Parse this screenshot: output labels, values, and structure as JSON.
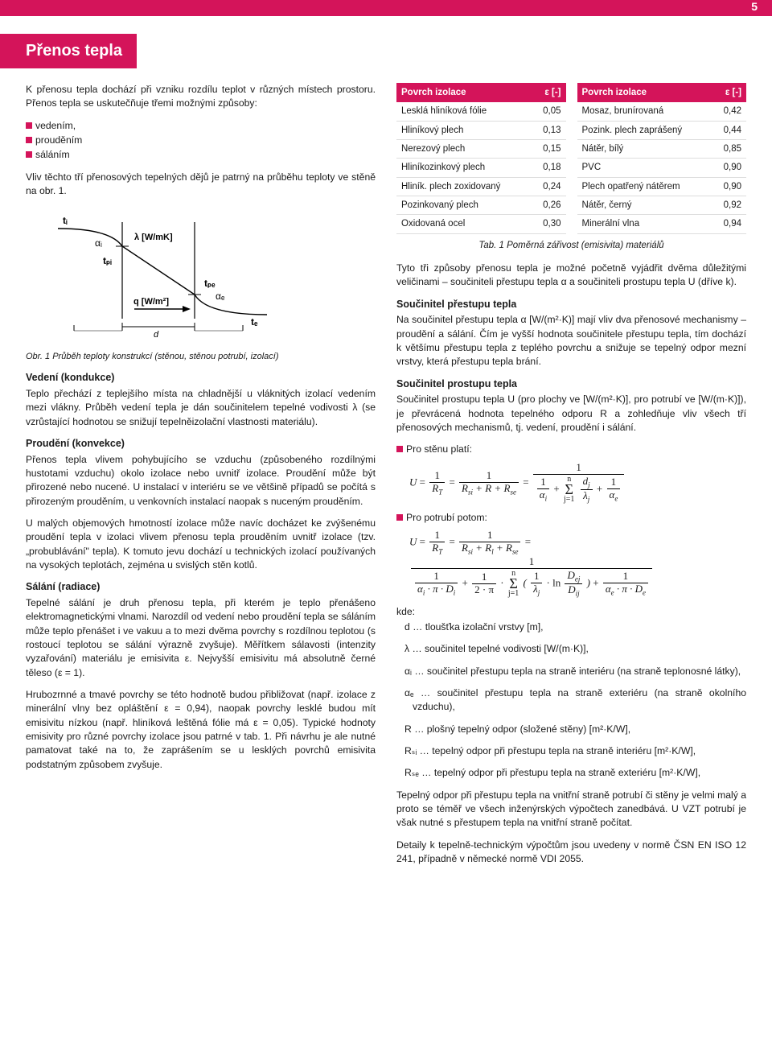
{
  "page_number": "5",
  "title": "Přenos tepla",
  "intro": {
    "p1": "K přenosu tepla dochází při vzniku rozdílu teplot v různých místech prostoru. Přenos tepla se uskutečňuje třemi možnými způsoby:",
    "bullets": [
      "vedením,",
      "prouděním",
      "sáláním"
    ],
    "p2": "Vliv těchto tří přenosových tepelných dějů je patrný na průběhu teploty ve stěně na obr. 1."
  },
  "tables": {
    "header_left": "Povrch izolace",
    "header_right": "ε [-]",
    "left_rows": [
      [
        "Lesklá hliníková fólie",
        "0,05"
      ],
      [
        "Hliníkový plech",
        "0,13"
      ],
      [
        "Nerezový plech",
        "0,15"
      ],
      [
        "Hliníkozinkový plech",
        "0,18"
      ],
      [
        "Hliník. plech zoxidovaný",
        "0,24"
      ],
      [
        "Pozinkovaný plech",
        "0,26"
      ],
      [
        "Oxidovaná ocel",
        "0,30"
      ]
    ],
    "right_rows": [
      [
        "Mosaz, brunírovaná",
        "0,42"
      ],
      [
        "Pozink. plech zaprášený",
        "0,44"
      ],
      [
        "Nátěr, bílý",
        "0,85"
      ],
      [
        "PVC",
        "0,90"
      ],
      [
        "Plech opatřený nátěrem",
        "0,90"
      ],
      [
        "Nátěr, černý",
        "0,92"
      ],
      [
        "Minerální vlna",
        "0,94"
      ]
    ],
    "caption": "Tab. 1 Poměrná zářivost (emisivita) materiálů"
  },
  "right_intro": "Tyto tři způsoby přenosu tepla je možné početně vyjádřit dvěma důležitými veličinami – součiniteli přestupu tepla α a součiniteli prostupu tepla U (dříve k).",
  "diagram": {
    "labels": {
      "ti": "tᵢ",
      "ai": "αᵢ",
      "tpi": "tₚᵢ",
      "lambda": "λ [W/mK]",
      "q": "q [W/m²]",
      "d": "d",
      "tpe": "tₚₑ",
      "ae": "αₑ",
      "te": "tₑ"
    },
    "line_color": "#000000",
    "fontsize": 11
  },
  "fig_caption": "Obr. 1 Průběh teploty konstrukcí (stěnou, stěnou potrubí, izolací)",
  "sections_left": {
    "vedeni_h": "Vedení (kondukce)",
    "vedeni_p": "Teplo přechází z teplejšího místa na chladnější u vláknitých izolací vedením mezi vlákny. Průběh vedení tepla je dán součinitelem tepelné vodivosti λ (se vzrůstající hodnotou se snižují tepelněizolační vlastnosti materiálu).",
    "proud_h": "Proudění (konvekce)",
    "proud_p": "Přenos tepla vlivem pohybujícího se vzduchu (způsobeného rozdílnými hustotami vzduchu) okolo izolace nebo uvnitř izolace. Proudění může být přirozené nebo nucené. U instalací v interiéru se ve většině případů se počítá s přirozeným prouděním, u venkovních instalací naopak s nuceným prouděním.",
    "proud_p2": "U malých objemových hmotností izolace může navíc docházet ke zvýšenému proudění tepla v izolaci vlivem přenosu tepla prouděním uvnitř izolace (tzv. „probublávání\" tepla). K tomuto jevu dochází u technických izolací používaných na vysokých teplotách, zejména u svislých stěn kotlů.",
    "salani_h": "Sálání (radiace)",
    "salani_p": "Tepelné sálání je druh přenosu tepla, při kterém je teplo přenášeno elektromagnetickými vlnami. Narozdíl od vedení nebo proudění tepla se sáláním může teplo přenášet i ve vakuu a to mezi dvěma povrchy s rozdílnou teplotou (s rostoucí teplotou se sálání výrazně zvyšuje). Měřítkem sálavosti (intenzity vyzařování) materiálu je emisivita ε. Nejvyšší emisivitu má absolutně černé těleso (ε = 1).",
    "hrub_p": "Hrubozrnné a tmavé povrchy se této hodnotě budou přibližovat (např. izolace z minerální vlny bez opláštění ε  = 0,94), naopak povrchy lesklé budou mít emisivitu nízkou (např. hliníková leštěná fólie má ε = 0,05). Typické hodnoty emisivity pro různé povrchy izolace jsou patrné v tab. 1. Při návrhu je ale nutné pamatovat také na to, že zaprášením se u lesklých povrchů emisivita podstatným způsobem zvyšuje."
  },
  "sections_right": {
    "prestup_h": "Součinitel přestupu tepla",
    "prestup_p": "Na součinitel přestupu tepla α [W/(m²·K)] mají vliv dva přenosové mechanismy – proudění a sálání. Čím je vyšší hodnota součinitele přestupu tepla, tím dochází k většímu přestupu tepla z teplého povrchu a snižuje se tepelný odpor mezní vrstvy, která přestupu tepla brání.",
    "prostup_h": "Součinitel prostupu tepla",
    "prostup_p": "Součinitel prostupu tepla U (pro plochy ve [W/(m²·K)], pro potrubí ve [W/(m·K)]), je převrácená hodnota tepelného odporu R a zohledňuje vliv všech tří přenosových mechanismů, tj. vedení, proudění i sálání.",
    "pro_stenu": "Pro stěnu platí:",
    "pro_potrubi": "Pro potrubí potom:",
    "kde": "kde:",
    "kde_lines": [
      "d … tloušťka izolační vrstvy [m],",
      "λ … součinitel tepelné vodivosti [W/(m·K)],",
      "αᵢ … součinitel přestupu tepla na straně interiéru (na straně teplonosné látky),",
      "αₑ … součinitel přestupu tepla na straně exteriéru (na straně okolního vzduchu),",
      "R … plošný tepelný odpor (složené stěny) [m²·K/W],",
      "Rₛᵢ … tepelný odpor při přestupu tepla na straně interiéru [m²·K/W],",
      "Rₛₑ … tepelný odpor při přestupu tepla na straně exteriéru [m²·K/W],"
    ],
    "closing1": "Tepelný odpor při přestupu tepla na vnitřní straně potrubí či stěny je velmi malý a proto se téměř ve všech inženýrských výpočtech zanedbává. U VZT potrubí je však nutné s přestupem tepla na vnitřní straně počítat.",
    "closing2": "Detaily k tepelně-technickým výpočtům jsou uvedeny v normě ČSN EN ISO 12 241, případně v německé normě VDI 2055."
  }
}
